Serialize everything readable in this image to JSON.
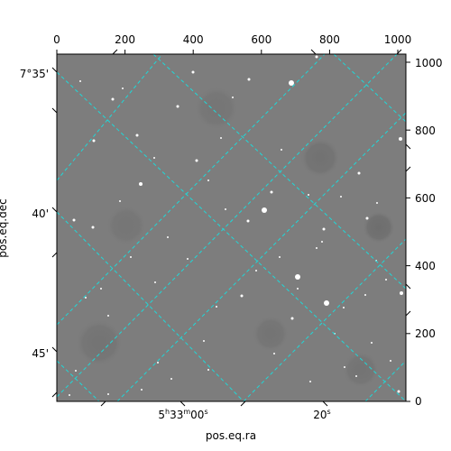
{
  "figure": {
    "x_axis_label": "pos.eq.ra",
    "y_axis_label": "pos.eq.dec",
    "ra_ticks": [
      {
        "h": "5",
        "m": "33",
        "s": "00",
        "suffix": "s"
      },
      {
        "text": "20",
        "suffix": "s"
      }
    ],
    "dec_ticks": [
      "7°35'",
      "40'",
      "45'"
    ],
    "pixel_x_ticks": [
      "0",
      "200",
      "400",
      "600",
      "800",
      "1000"
    ],
    "pixel_y_ticks": [
      "0",
      "200",
      "400",
      "600",
      "800",
      "1000"
    ],
    "grid_color": "#1fd8d8",
    "pixel_range": [
      0,
      1024
    ]
  }
}
